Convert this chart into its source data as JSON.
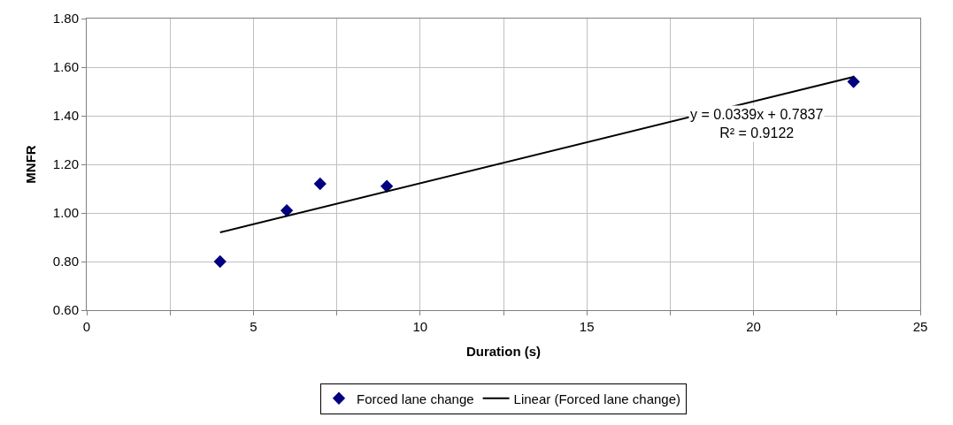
{
  "chart_data": {
    "type": "scatter",
    "xlabel": "Duration (s)",
    "ylabel": "MNFR",
    "xlim": [
      0,
      25
    ],
    "ylim": [
      0.6,
      1.8
    ],
    "xticks": [
      0,
      {
        "value": 2.5,
        "label": null
      },
      5,
      {
        "value": 7.5,
        "label": null
      },
      10,
      {
        "value": 12.5,
        "label": null
      },
      15,
      {
        "value": 17.5,
        "label": null
      },
      20,
      {
        "value": 22.5,
        "label": null
      },
      25
    ],
    "yticks": [
      {
        "value": 0.6,
        "label": "0.60"
      },
      {
        "value": 0.8,
        "label": "0.80"
      },
      {
        "value": 1.0,
        "label": "1.00"
      },
      {
        "value": 1.2,
        "label": "1.20"
      },
      {
        "value": 1.4,
        "label": "1.40"
      },
      {
        "value": 1.6,
        "label": "1.60"
      },
      {
        "value": 1.8,
        "label": "1.80"
      }
    ],
    "grid": true,
    "legend": "bottom",
    "series": [
      {
        "name": "Forced lane change",
        "marker": "diamond",
        "color": "#000080",
        "x": [
          4,
          6,
          7,
          9,
          23
        ],
        "values": [
          0.8,
          1.01,
          1.12,
          1.11,
          1.54
        ]
      },
      {
        "name": "Linear (Forced lane change)",
        "type": "line",
        "marker": "none",
        "color": "#000000",
        "x": [
          4,
          23
        ],
        "values": [
          0.92,
          1.56
        ]
      }
    ],
    "annotations": [
      "y = 0.0339x + 0.7837\nR² = 0.9122"
    ]
  }
}
